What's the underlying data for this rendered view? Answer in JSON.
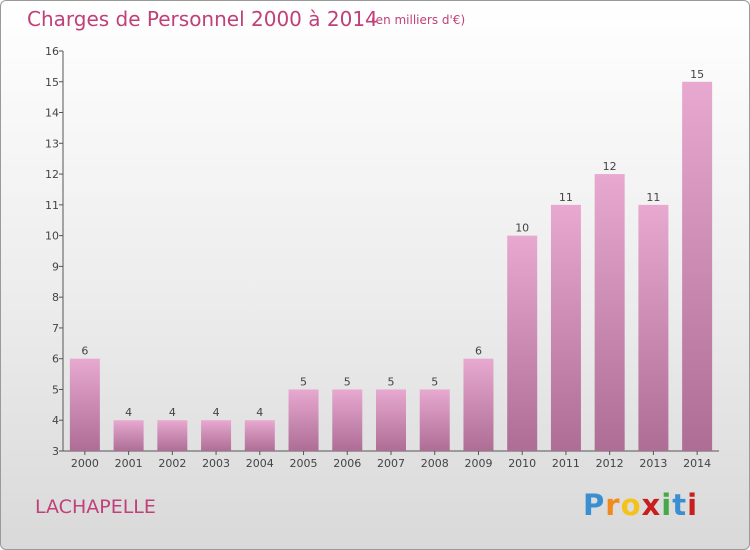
{
  "header": {
    "title": "Charges de Personnel 2000 à 2014",
    "subtitle": "(en milliers d'€)"
  },
  "footer": {
    "commune": "LACHAPELLE",
    "brand_letters": [
      "P",
      "r",
      "o",
      "x",
      "i",
      "t",
      "i"
    ]
  },
  "colors": {
    "title": "#c0407a",
    "bar_top": "#e8a9d0",
    "bar_bottom": "#ad6d95",
    "brand": [
      "#3a8fd1",
      "#f08a1c",
      "#f5c21a",
      "#c81e1e",
      "#46a848",
      "#3a8fd1",
      "#c81e1e"
    ]
  },
  "chart_data": {
    "type": "bar",
    "title": "Charges de Personnel 2000 à 2014",
    "categories": [
      "2000",
      "2001",
      "2002",
      "2003",
      "2004",
      "2005",
      "2006",
      "2007",
      "2008",
      "2009",
      "2010",
      "2011",
      "2012",
      "2013",
      "2014"
    ],
    "values": [
      6,
      4,
      4,
      4,
      4,
      5,
      5,
      5,
      5,
      6,
      10,
      11,
      12,
      11,
      15
    ],
    "ylim": [
      3,
      16
    ],
    "yticks": [
      3,
      4,
      5,
      6,
      7,
      8,
      9,
      10,
      11,
      12,
      13,
      14,
      15,
      16
    ],
    "grid": false,
    "legend": "none"
  }
}
